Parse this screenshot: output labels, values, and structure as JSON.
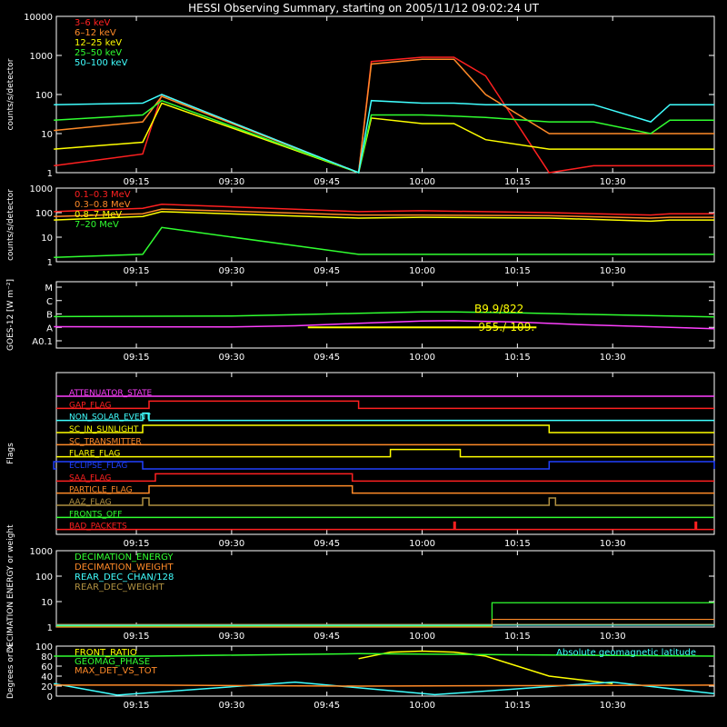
{
  "title": "HESSI Observing Summary, starting on 2005/11/12 09:02:24 UT",
  "time_ticks": [
    "09:15",
    "09:30",
    "09:45",
    "10:00",
    "10:15",
    "10:30"
  ],
  "colors": {
    "background": "#000000",
    "axes": "#ffffff",
    "red": "#ff2020",
    "orange": "#ff8a28",
    "yellow": "#ffff00",
    "green": "#30ff30",
    "cyan": "#40ffff",
    "magenta": "#ff40ff",
    "blue": "#2040ff",
    "olive": "#b09040"
  },
  "chart_data": [
    {
      "type": "line",
      "panel": "low-energy-rates",
      "ylabel": "counts/s/detector",
      "y_scale": "log",
      "ylim": [
        1,
        10000
      ],
      "y_ticks": [
        "1",
        "10",
        "100",
        "1000",
        "10000"
      ],
      "legend_position": "top-left",
      "x": [
        "09:02",
        "09:16",
        "09:19",
        "09:50",
        "09:52",
        "10:00",
        "10:05",
        "10:10",
        "10:20",
        "10:27",
        "10:36",
        "10:39",
        "10:46"
      ],
      "series": [
        {
          "name": "3–6 keV",
          "color": "#ff2020",
          "values": [
            1.5,
            3,
            100,
            1,
            700,
            900,
            900,
            300,
            1,
            1.5,
            1.5,
            1.5,
            1.5
          ]
        },
        {
          "name": "6–12 keV",
          "color": "#ff8a28",
          "values": [
            12,
            20,
            90,
            1,
            600,
            800,
            800,
            100,
            10,
            10,
            10,
            10,
            10
          ]
        },
        {
          "name": "12–25 keV",
          "color": "#ffff00",
          "values": [
            4,
            6,
            60,
            1,
            25,
            18,
            18,
            7,
            4,
            4,
            4,
            4,
            4
          ]
        },
        {
          "name": "25–50 keV",
          "color": "#30ff30",
          "values": [
            22,
            30,
            70,
            1,
            30,
            30,
            28,
            26,
            20,
            20,
            10,
            22,
            22
          ]
        },
        {
          "name": "50–100 keV",
          "color": "#40ffff",
          "values": [
            55,
            60,
            100,
            1,
            70,
            60,
            60,
            55,
            55,
            55,
            20,
            55,
            55
          ]
        }
      ]
    },
    {
      "type": "line",
      "panel": "high-energy-rates",
      "ylabel": "counts/s/detector",
      "y_scale": "log",
      "ylim": [
        1,
        1000
      ],
      "y_ticks": [
        "1",
        "10",
        "100",
        "1000"
      ],
      "legend_position": "top-left",
      "x": [
        "09:02",
        "09:16",
        "09:19",
        "09:50",
        "10:00",
        "10:20",
        "10:36",
        "10:39",
        "10:46"
      ],
      "series": [
        {
          "name": "0.1–0.3 MeV",
          "color": "#ff2020",
          "values": [
            110,
            150,
            220,
            110,
            120,
            100,
            80,
            90,
            90
          ]
        },
        {
          "name": "0.3–0.8 MeV",
          "color": "#ff8a28",
          "values": [
            70,
            90,
            140,
            80,
            80,
            75,
            60,
            65,
            65
          ]
        },
        {
          "name": "0.8–7 MeV",
          "color": "#ffff00",
          "values": [
            50,
            70,
            110,
            60,
            65,
            60,
            45,
            50,
            50
          ]
        },
        {
          "name": "7–20 MeV",
          "color": "#30ff30",
          "values": [
            1.5,
            2,
            25,
            2,
            2,
            2,
            2,
            2,
            2
          ]
        }
      ]
    },
    {
      "type": "line",
      "panel": "goes",
      "ylabel": "GOES-12 [W m⁻²]",
      "y_ticks": [
        "A0.1",
        "A",
        "B",
        "C",
        "M"
      ],
      "annotations": [
        "B9.9/822",
        "-955./-109."
      ],
      "x": [
        "09:02",
        "09:30",
        "09:40",
        "09:50",
        "10:00",
        "10:05",
        "10:15",
        "10:25",
        "10:46"
      ],
      "series": [
        {
          "color": "#30ff30",
          "values": [
            0.8,
            0.85,
            0.95,
            1.05,
            1.15,
            1.15,
            1.08,
            0.98,
            0.78
          ]
        },
        {
          "color": "#ff40ff",
          "values": [
            0.05,
            0.03,
            0.12,
            0.3,
            0.48,
            0.5,
            0.4,
            0.2,
            -0.1
          ]
        }
      ],
      "segment": {
        "color": "#ffff00",
        "x": [
          "09:42",
          "10:18"
        ],
        "value": 0.0
      }
    },
    {
      "type": "line",
      "panel": "flags",
      "ylabel": "Flags",
      "series": [
        {
          "name": "ATTENUATOR_STATE",
          "color": "#ff40ff",
          "on": []
        },
        {
          "name": "GAP_FLAG",
          "color": "#ff2020",
          "on": [
            [
              "09:17",
              "09:50"
            ]
          ]
        },
        {
          "name": "NON_SOLAR_EVENT",
          "color": "#40ffff",
          "on": [
            [
              "09:16",
              "09:17"
            ]
          ]
        },
        {
          "name": "SC_IN_SUNLIGHT",
          "color": "#ffff00",
          "on": [
            [
              "09:16",
              "10:20"
            ]
          ]
        },
        {
          "name": "SC_TRANSMITTER",
          "color": "#ff8a28",
          "on": []
        },
        {
          "name": "FLARE_FLAG",
          "color": "#ffff00",
          "on": [
            [
              "09:55",
              "10:06"
            ]
          ]
        },
        {
          "name": "ECLIPSE_FLAG",
          "color": "#2040ff",
          "on": [
            [
              "09:02",
              "09:16"
            ],
            [
              "10:20",
              "10:46"
            ]
          ]
        },
        {
          "name": "SAA_FLAG",
          "color": "#ff2020",
          "on": [
            [
              "09:18",
              "09:49"
            ]
          ]
        },
        {
          "name": "PARTICLE_FLAG",
          "color": "#ff8a28",
          "on": [
            [
              "09:17",
              "09:49"
            ]
          ]
        },
        {
          "name": "AAZ_FLAG",
          "color": "#b09040",
          "on": [
            [
              "09:16",
              "09:17"
            ],
            [
              "10:20",
              "10:21"
            ]
          ]
        },
        {
          "name": "FRONTS_OFF",
          "color": "#30ff30",
          "on": []
        },
        {
          "name": "BAD_PACKETS",
          "color": "#ff2020",
          "on": [
            [
              "10:05",
              "10:05"
            ],
            [
              "10:43",
              "10:43"
            ]
          ]
        }
      ]
    },
    {
      "type": "line",
      "panel": "decimation",
      "ylabel": "DECIMATION ENERGY or weight",
      "y_scale": "log",
      "ylim": [
        1,
        1000
      ],
      "y_ticks": [
        "1",
        "10",
        "100",
        "1000"
      ],
      "series": [
        {
          "name": "DECIMATION_ENERGY",
          "color": "#30ff30",
          "values_desc": "0 until 10:11, then 9"
        },
        {
          "name": "DECIMATION_WEIGHT",
          "color": "#ff8a28",
          "values_desc": "1 until 10:11, then 2"
        },
        {
          "name": "REAR_DEC_CHAN/128",
          "color": "#40ffff",
          "values_desc": "0"
        },
        {
          "name": "REAR_DEC_WEIGHT",
          "color": "#b09040",
          "values_desc": "0"
        }
      ]
    },
    {
      "type": "line",
      "panel": "ratios",
      "ylabel": "Degrees or %",
      "ylim": [
        0,
        100
      ],
      "y_ticks": [
        "0",
        "20",
        "40",
        "60",
        "80",
        "100"
      ],
      "series": [
        {
          "name": "FRONT_RATIO",
          "color": "#ffff00",
          "x": [
            "09:50",
            "09:55",
            "10:00",
            "10:05",
            "10:10",
            "10:20",
            "10:30"
          ],
          "values": [
            75,
            88,
            90,
            88,
            80,
            40,
            25
          ]
        },
        {
          "name": "Absolute geomagnetic latitude",
          "color": "#40ffff",
          "x": [
            "09:02",
            "09:12",
            "09:40",
            "10:02",
            "10:30",
            "10:46"
          ],
          "values": [
            25,
            2,
            28,
            3,
            28,
            5
          ]
        },
        {
          "name": "GEOMAG_PHASE",
          "color": "#30ff30",
          "x": [
            "09:02",
            "09:17",
            "09:50",
            "10:46"
          ],
          "values": [
            80,
            80,
            85,
            80
          ]
        },
        {
          "name": "MAX_DET_VS_TOT",
          "color": "#ff8a28",
          "x": [
            "09:02",
            "09:17",
            "09:50",
            "10:46"
          ],
          "values": [
            22,
            22,
            20,
            22
          ]
        }
      ]
    }
  ]
}
